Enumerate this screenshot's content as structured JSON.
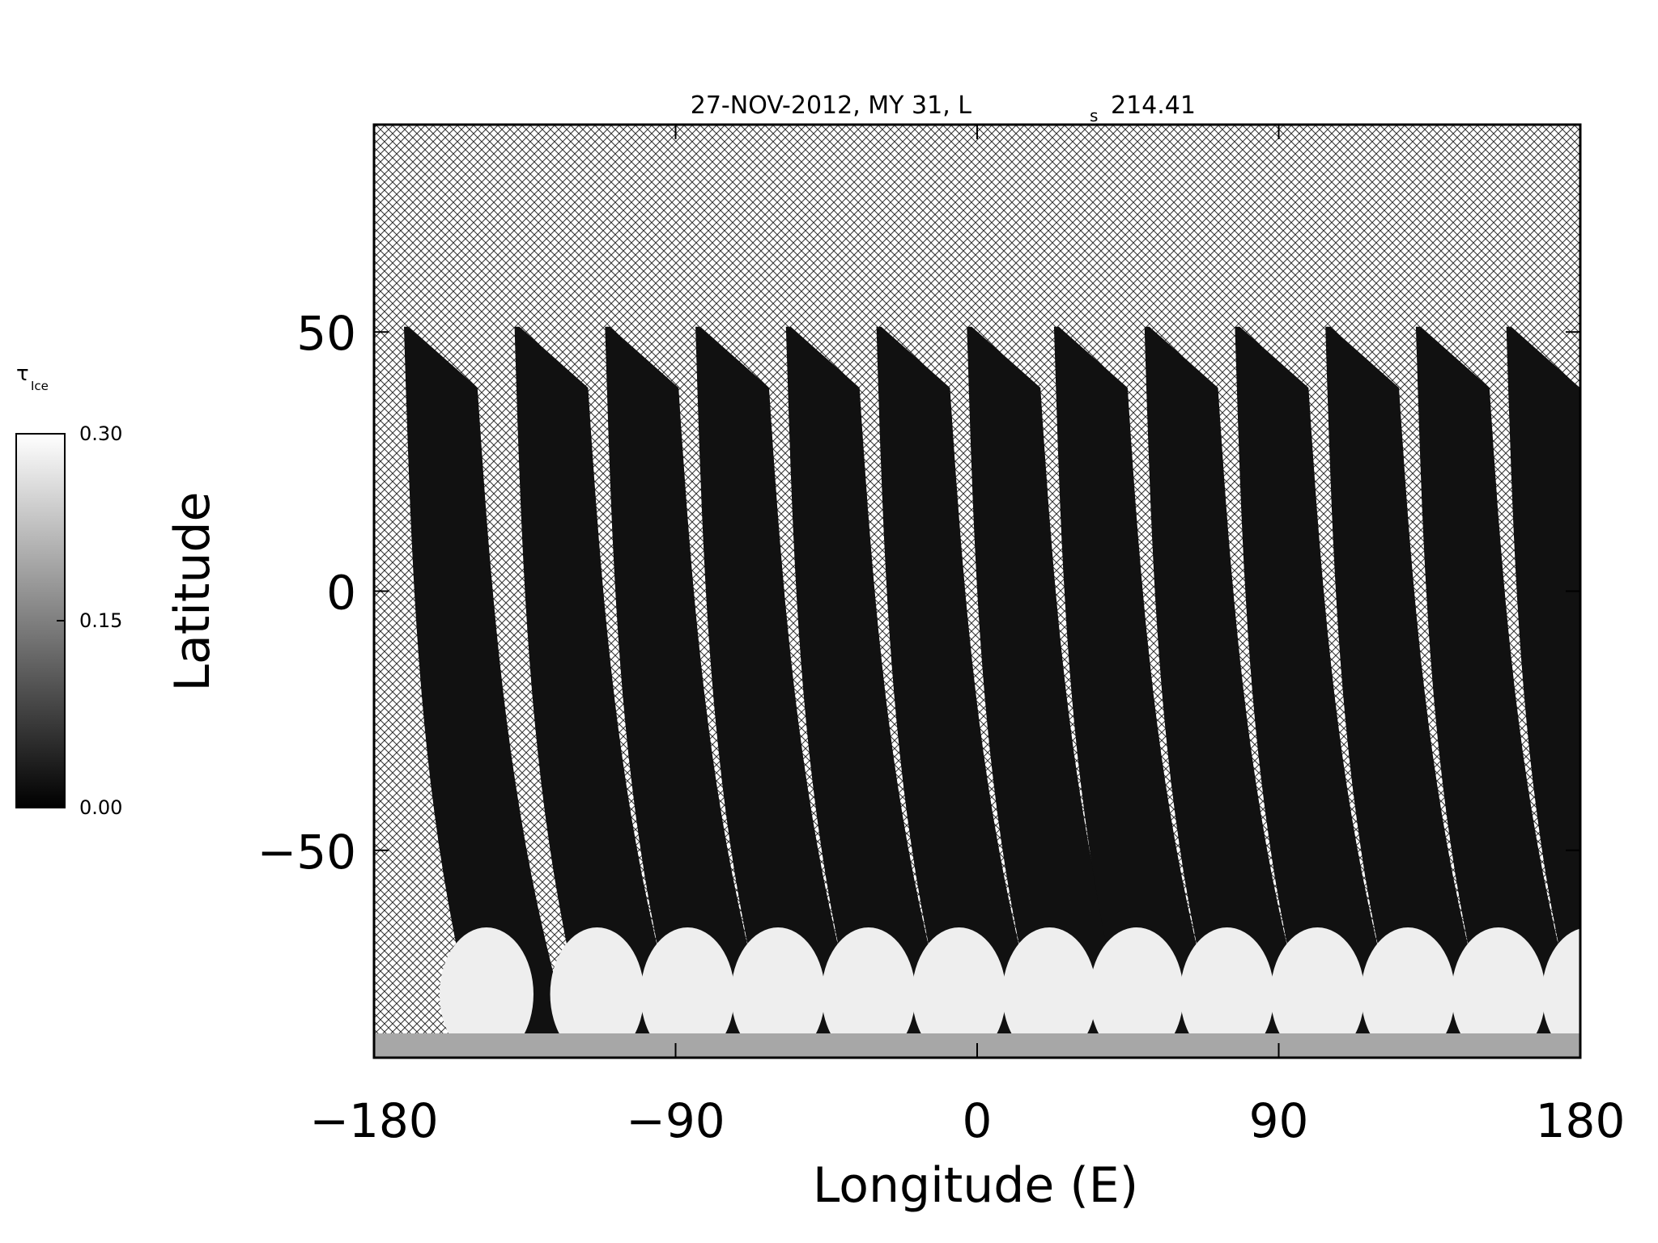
{
  "chart_data": {
    "type": "heatmap",
    "title_main": "27-NOV-2012, MY 31,  L",
    "title_sub": "s",
    "title_value": "214.41",
    "xlabel": "Longitude (E)",
    "ylabel": "Latitude",
    "xlim": [
      -180,
      180
    ],
    "ylim": [
      -90,
      90
    ],
    "x_ticks": [
      -180,
      -90,
      0,
      90,
      180
    ],
    "x_tick_labels": [
      "−180",
      "−90",
      "0",
      "90",
      "180"
    ],
    "y_ticks": [
      -50,
      0,
      50
    ],
    "y_tick_labels": [
      "−50",
      "0",
      "50"
    ],
    "colorbar": {
      "label_symbol": "τ",
      "label_sub": "Ice",
      "min": 0.0,
      "max": 0.3,
      "tick_labels": [
        "0.30",
        "0.15",
        "0.00"
      ],
      "tick_values": [
        0.3,
        0.15,
        0.0
      ],
      "colormap": "grayscale",
      "low_color": "#000000",
      "high_color": "#ffffff"
    },
    "missing_data_pattern": "crosshatch",
    "swath_count": 13,
    "swath_lat_top": 51,
    "swath_lat_bottom": -90,
    "swath_start_lon": [
      -173,
      -140,
      -113,
      -86,
      -59,
      -32,
      -5,
      21,
      48,
      75,
      102,
      129,
      156
    ],
    "typical_optical_depth": 0.02,
    "polar_hood_lat_range": [
      -90,
      -63
    ],
    "polar_hood_optical_depth": 0.28
  }
}
